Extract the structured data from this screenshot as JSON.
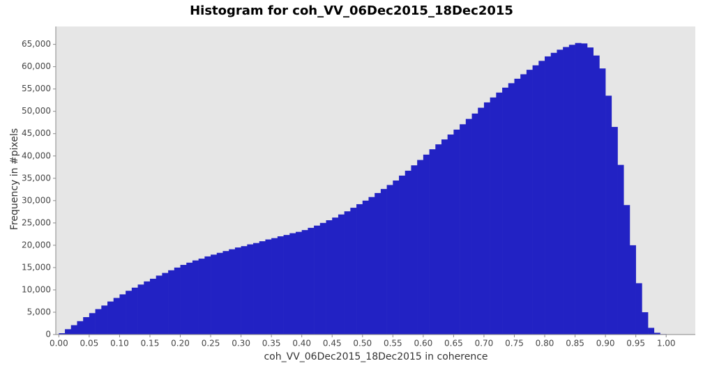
{
  "chart_data": {
    "type": "histogram",
    "title": "Histogram for coh_VV_06Dec2015_18Dec2015",
    "x_label": "coh_VV_06Dec2015_18Dec2015 in coherence",
    "y_label": "Frequency in #pixels",
    "color": "#2222c4",
    "background": "#e6e6e6",
    "bins": [
      0,
      0.01,
      0.02,
      0.03,
      0.04,
      0.05,
      0.06,
      0.07,
      0.08,
      0.09,
      0.1,
      0.11,
      0.12,
      0.13,
      0.14,
      0.15,
      0.16,
      0.17,
      0.18,
      0.19,
      0.2,
      0.21,
      0.22,
      0.23,
      0.24,
      0.25,
      0.26,
      0.27,
      0.28,
      0.29,
      0.3,
      0.31,
      0.32,
      0.33,
      0.34,
      0.35,
      0.36,
      0.37,
      0.38,
      0.39,
      0.4,
      0.41,
      0.42,
      0.43,
      0.44,
      0.45,
      0.46,
      0.47,
      0.48,
      0.49,
      0.5,
      0.51,
      0.52,
      0.53,
      0.54,
      0.55,
      0.56,
      0.57,
      0.58,
      0.59,
      0.6,
      0.61,
      0.62,
      0.63,
      0.64,
      0.65,
      0.66,
      0.67,
      0.68,
      0.69,
      0.7,
      0.71,
      0.72,
      0.73,
      0.74,
      0.75,
      0.76,
      0.77,
      0.78,
      0.79,
      0.8,
      0.81,
      0.82,
      0.83,
      0.84,
      0.85,
      0.86,
      0.87,
      0.88,
      0.89,
      0.9,
      0.91,
      0.92,
      0.93,
      0.94,
      0.95,
      0.96,
      0.97,
      0.98,
      0.99,
      1
    ],
    "values": [
      300,
      1200,
      2100,
      3000,
      3900,
      4800,
      5700,
      6500,
      7400,
      8200,
      9000,
      9800,
      10500,
      11200,
      11900,
      12500,
      13200,
      13800,
      14400,
      15000,
      15600,
      16100,
      16600,
      17000,
      17500,
      17900,
      18300,
      18700,
      19100,
      19500,
      19800,
      20200,
      20500,
      20900,
      21300,
      21600,
      22000,
      22300,
      22700,
      23000,
      23400,
      23900,
      24400,
      25000,
      25600,
      26200,
      26900,
      27600,
      28400,
      29200,
      30000,
      30800,
      31700,
      32600,
      33500,
      34500,
      35600,
      36700,
      37900,
      39100,
      40300,
      41500,
      42600,
      43700,
      44800,
      45900,
      47100,
      48300,
      49500,
      50800,
      52000,
      53100,
      54200,
      55300,
      56300,
      57300,
      58300,
      59300,
      60300,
      61300,
      62300,
      63100,
      63800,
      64400,
      64900,
      65300,
      65200,
      64300,
      62500,
      59600,
      53500,
      46500,
      38000,
      29000,
      20000,
      11500,
      5000,
      1500,
      400,
      100
    ],
    "xlim": [
      -0.005,
      1.048
    ],
    "ylim": [
      0,
      69000
    ],
    "xticks": [
      {
        "value": 0,
        "label": "0.00"
      },
      0.05,
      {
        "value": 0.1,
        "label": "0.10"
      },
      0.15,
      {
        "value": 0.2,
        "label": "0.20"
      },
      0.25,
      {
        "value": 0.3,
        "label": "0.30"
      },
      0.35,
      {
        "value": 0.4,
        "label": "0.40"
      },
      0.45,
      {
        "value": 0.5,
        "label": "0.50"
      },
      0.55,
      {
        "value": 0.6,
        "label": "0.60"
      },
      0.65,
      {
        "value": 0.7,
        "label": "0.70"
      },
      0.75,
      {
        "value": 0.8,
        "label": "0.80"
      },
      0.85,
      {
        "value": 0.9,
        "label": "0.90"
      },
      0.95,
      {
        "value": 1,
        "label": "1.00"
      }
    ],
    "yticks": [
      0,
      {
        "value": 5000,
        "label": "5,000"
      },
      {
        "value": 10000,
        "label": "10,000"
      },
      {
        "value": 15000,
        "label": "15,000"
      },
      {
        "value": 20000,
        "label": "20,000"
      },
      {
        "value": 25000,
        "label": "25,000"
      },
      {
        "value": 30000,
        "label": "30,000"
      },
      {
        "value": 35000,
        "label": "35,000"
      },
      {
        "value": 40000,
        "label": "40,000"
      },
      {
        "value": 45000,
        "label": "45,000"
      },
      {
        "value": 50000,
        "label": "50,000"
      },
      {
        "value": 55000,
        "label": "55,000"
      },
      {
        "value": 60000,
        "label": "60,000"
      },
      {
        "value": 65000,
        "label": "65,000"
      }
    ]
  }
}
